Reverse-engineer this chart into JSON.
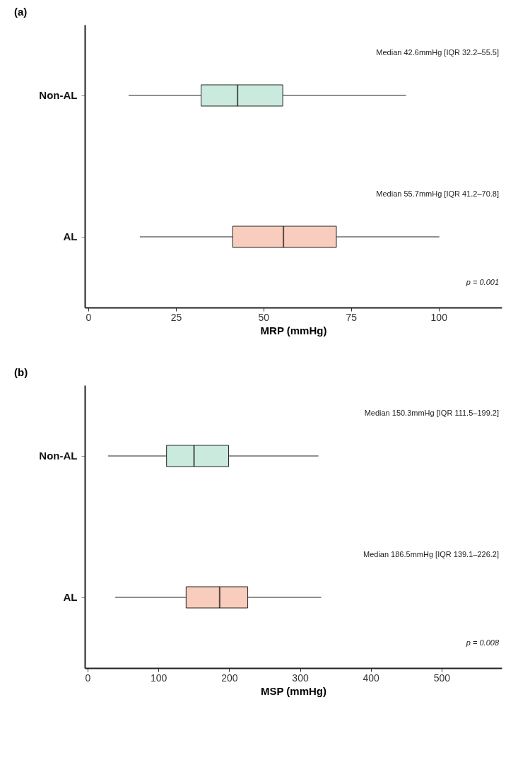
{
  "chart_data": [
    {
      "type": "box",
      "title": "(a)",
      "orientation": "horizontal",
      "categories": [
        "Non-AL",
        "AL"
      ],
      "xlabel": "MRP (mmHg)",
      "xlim": [
        -1,
        118
      ],
      "xticks": [
        0,
        25,
        50,
        75,
        100
      ],
      "grid": false,
      "colors": [
        "#cbeade",
        "#f9cdbd"
      ],
      "boxes": [
        {
          "low": 11.5,
          "q1": 32.2,
          "median": 42.6,
          "q3": 55.5,
          "high": 90.7
        },
        {
          "low": 14.7,
          "q1": 41.2,
          "median": 55.7,
          "q3": 70.8,
          "high": 100.2
        }
      ],
      "annotations": [
        "Median 42.6mmHg [IQR 32.2–55.5]",
        "Median 55.7mmHg [IQR 41.2–70.8]",
        "p = 0.001"
      ]
    },
    {
      "type": "box",
      "title": "(b)",
      "orientation": "horizontal",
      "categories": [
        "Non-AL",
        "AL"
      ],
      "xlabel": "MSP (mmHg)",
      "xlim": [
        -4,
        585
      ],
      "xticks": [
        0,
        100,
        200,
        300,
        400,
        500
      ],
      "grid": false,
      "colors": [
        "#cbeade",
        "#f9cdbd"
      ],
      "boxes": [
        {
          "low": 29,
          "q1": 111.5,
          "median": 150.3,
          "q3": 199.2,
          "high": 326
        },
        {
          "low": 39,
          "q1": 139.1,
          "median": 186.5,
          "q3": 226.2,
          "high": 330
        }
      ],
      "annotations": [
        "Median 150.3mmHg [IQR 111.5–199.2]",
        "Median 186.5mmHg [IQR 139.1–226.2]",
        "p = 0.008"
      ]
    }
  ]
}
